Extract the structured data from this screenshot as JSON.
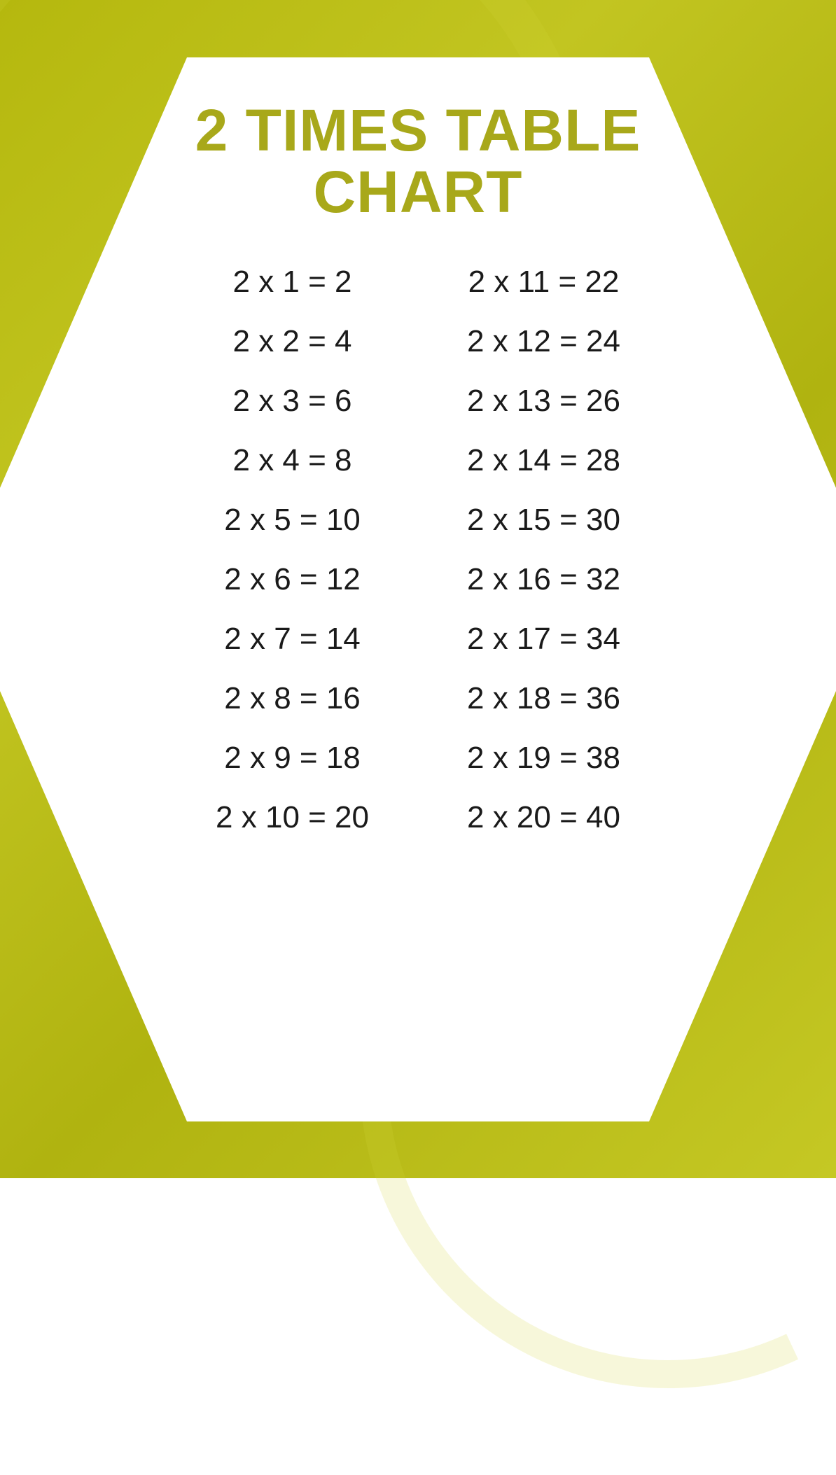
{
  "title_line1": "2 TIMES TABLE",
  "title_line2": "CHART",
  "title_color": "#a8a81a",
  "background_color_start": "#b5b80e",
  "background_color_end": "#c5c824",
  "hexagon_color": "#ffffff",
  "text_color": "#1a1a1a",
  "title_fontsize": 84,
  "equation_fontsize": 44,
  "type": "table",
  "multiplier": 2,
  "left_column": [
    "2 x 1 = 2",
    "2 x 2 = 4",
    "2 x 3 = 6",
    "2 x 4 = 8",
    "2 x 5 = 10",
    "2 x 6 = 12",
    "2 x 7 = 14",
    "2 x 8 = 16",
    "2 x 9 = 18",
    "2 x 10 = 20"
  ],
  "right_column": [
    "2 x 11 = 22",
    "2 x 12 = 24",
    "2 x 13 = 26",
    "2 x 14 = 28",
    "2 x 15 = 30",
    "2 x 16 = 32",
    "2 x 17 = 34",
    "2 x 18 = 36",
    "2 x 19 = 38",
    "2 x 20 = 40"
  ]
}
